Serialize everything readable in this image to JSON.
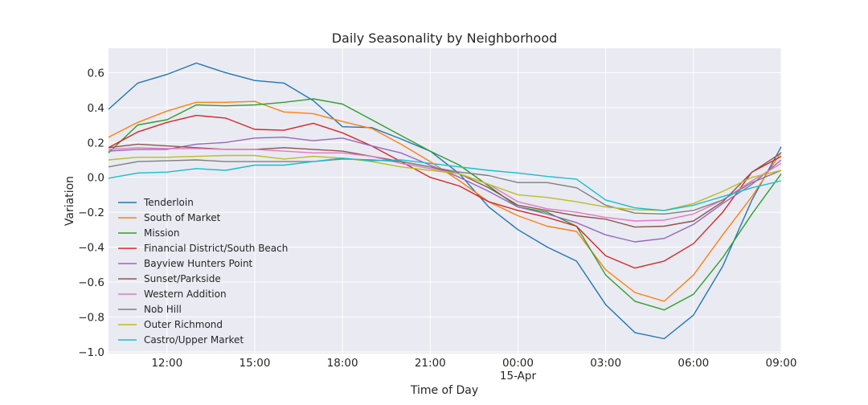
{
  "chart_data": {
    "type": "line",
    "title": "Daily Seasonality by Neighborhood",
    "xlabel": "Time of Day",
    "ylabel": "Variation",
    "x_hours": [
      10,
      11,
      12,
      13,
      14,
      15,
      16,
      17,
      18,
      19,
      20,
      21,
      22,
      23,
      24,
      25,
      26,
      27,
      28,
      29,
      30,
      31,
      32,
      33
    ],
    "xlim": [
      10,
      33
    ],
    "ylim": [
      -1.01,
      0.74
    ],
    "x_ticks": [
      {
        "value": 12,
        "label": "12:00"
      },
      {
        "value": 15,
        "label": "15:00"
      },
      {
        "value": 18,
        "label": "18:00"
      },
      {
        "value": 21,
        "label": "21:00"
      },
      {
        "value": 24,
        "label": "00:00",
        "sublabel": "15-Apr"
      },
      {
        "value": 27,
        "label": "03:00"
      },
      {
        "value": 30,
        "label": "06:00"
      },
      {
        "value": 33,
        "label": "09:00"
      }
    ],
    "y_ticks": [
      {
        "value": 0.6,
        "label": "0.6"
      },
      {
        "value": 0.4,
        "label": "0.4"
      },
      {
        "value": 0.2,
        "label": "0.2"
      },
      {
        "value": 0.0,
        "label": "0.0"
      },
      {
        "value": -0.2,
        "label": "−0.2"
      },
      {
        "value": -0.4,
        "label": "−0.4"
      },
      {
        "value": -0.6,
        "label": "−0.6"
      },
      {
        "value": -0.8,
        "label": "−0.8"
      },
      {
        "value": -1.0,
        "label": "−1.0"
      }
    ],
    "grid": true,
    "legend": "left",
    "series": [
      {
        "name": "Tenderloin",
        "color": "#1f77b4",
        "values": [
          0.39,
          0.54,
          0.59,
          0.655,
          0.6,
          0.555,
          0.54,
          0.44,
          0.29,
          0.285,
          0.22,
          0.15,
          0.02,
          -0.17,
          -0.3,
          -0.4,
          -0.48,
          -0.73,
          -0.89,
          -0.925,
          -0.79,
          -0.51,
          -0.13,
          0.175
        ]
      },
      {
        "name": "South of Market",
        "color": "#ff7f0e",
        "values": [
          0.23,
          0.315,
          0.38,
          0.43,
          0.43,
          0.435,
          0.375,
          0.365,
          0.32,
          0.28,
          0.19,
          0.09,
          -0.02,
          -0.14,
          -0.22,
          -0.28,
          -0.31,
          -0.53,
          -0.66,
          -0.71,
          -0.56,
          -0.33,
          -0.11,
          0.145
        ]
      },
      {
        "name": "Mission",
        "color": "#2ca02c",
        "values": [
          0.14,
          0.3,
          0.33,
          0.415,
          0.41,
          0.415,
          0.43,
          0.45,
          0.42,
          0.33,
          0.24,
          0.15,
          0.07,
          -0.05,
          -0.17,
          -0.2,
          -0.28,
          -0.56,
          -0.71,
          -0.76,
          -0.67,
          -0.46,
          -0.21,
          0.02
        ]
      },
      {
        "name": "Financial District/South Beach",
        "color": "#d62728",
        "values": [
          0.17,
          0.26,
          0.315,
          0.355,
          0.34,
          0.275,
          0.27,
          0.31,
          0.255,
          0.18,
          0.09,
          0.0,
          -0.05,
          -0.14,
          -0.19,
          -0.23,
          -0.28,
          -0.45,
          -0.52,
          -0.48,
          -0.38,
          -0.2,
          0.03,
          0.12
        ]
      },
      {
        "name": "Bayview Hunters Point",
        "color": "#9467bd",
        "values": [
          0.15,
          0.16,
          0.16,
          0.19,
          0.2,
          0.225,
          0.23,
          0.21,
          0.225,
          0.18,
          0.14,
          0.07,
          0.0,
          -0.08,
          -0.17,
          -0.21,
          -0.26,
          -0.33,
          -0.37,
          -0.35,
          -0.27,
          -0.15,
          -0.04,
          0.1
        ]
      },
      {
        "name": "Sunset/Parkside",
        "color": "#8c564b",
        "values": [
          0.17,
          0.19,
          0.18,
          0.17,
          0.16,
          0.16,
          0.17,
          0.16,
          0.15,
          0.12,
          0.09,
          0.06,
          0.02,
          -0.06,
          -0.16,
          -0.19,
          -0.22,
          -0.24,
          -0.285,
          -0.28,
          -0.25,
          -0.14,
          0.03,
          0.14
        ]
      },
      {
        "name": "Western Addition",
        "color": "#e377c2",
        "values": [
          0.16,
          0.17,
          0.165,
          0.165,
          0.16,
          0.16,
          0.15,
          0.14,
          0.14,
          0.12,
          0.08,
          0.05,
          0.02,
          -0.04,
          -0.14,
          -0.18,
          -0.2,
          -0.23,
          -0.25,
          -0.245,
          -0.21,
          -0.13,
          -0.02,
          0.08
        ]
      },
      {
        "name": "Nob Hill",
        "color": "#7f7f7f",
        "values": [
          0.06,
          0.09,
          0.095,
          0.1,
          0.09,
          0.09,
          0.09,
          0.09,
          0.105,
          0.1,
          0.09,
          0.06,
          0.03,
          0.01,
          -0.03,
          -0.03,
          -0.06,
          -0.16,
          -0.205,
          -0.21,
          -0.19,
          -0.13,
          -0.03,
          0.04
        ]
      },
      {
        "name": "Outer Richmond",
        "color": "#bcbd22",
        "values": [
          0.1,
          0.115,
          0.115,
          0.12,
          0.125,
          0.125,
          0.105,
          0.12,
          0.11,
          0.09,
          0.06,
          0.04,
          0.02,
          -0.04,
          -0.1,
          -0.115,
          -0.14,
          -0.17,
          -0.185,
          -0.19,
          -0.15,
          -0.08,
          0.0,
          0.04
        ]
      },
      {
        "name": "Castro/Upper Market",
        "color": "#17becf",
        "values": [
          -0.005,
          0.025,
          0.03,
          0.05,
          0.04,
          0.07,
          0.07,
          0.09,
          0.11,
          0.095,
          0.1,
          0.08,
          0.06,
          0.04,
          0.025,
          0.005,
          -0.01,
          -0.13,
          -0.175,
          -0.19,
          -0.16,
          -0.11,
          -0.06,
          -0.02
        ]
      }
    ]
  }
}
